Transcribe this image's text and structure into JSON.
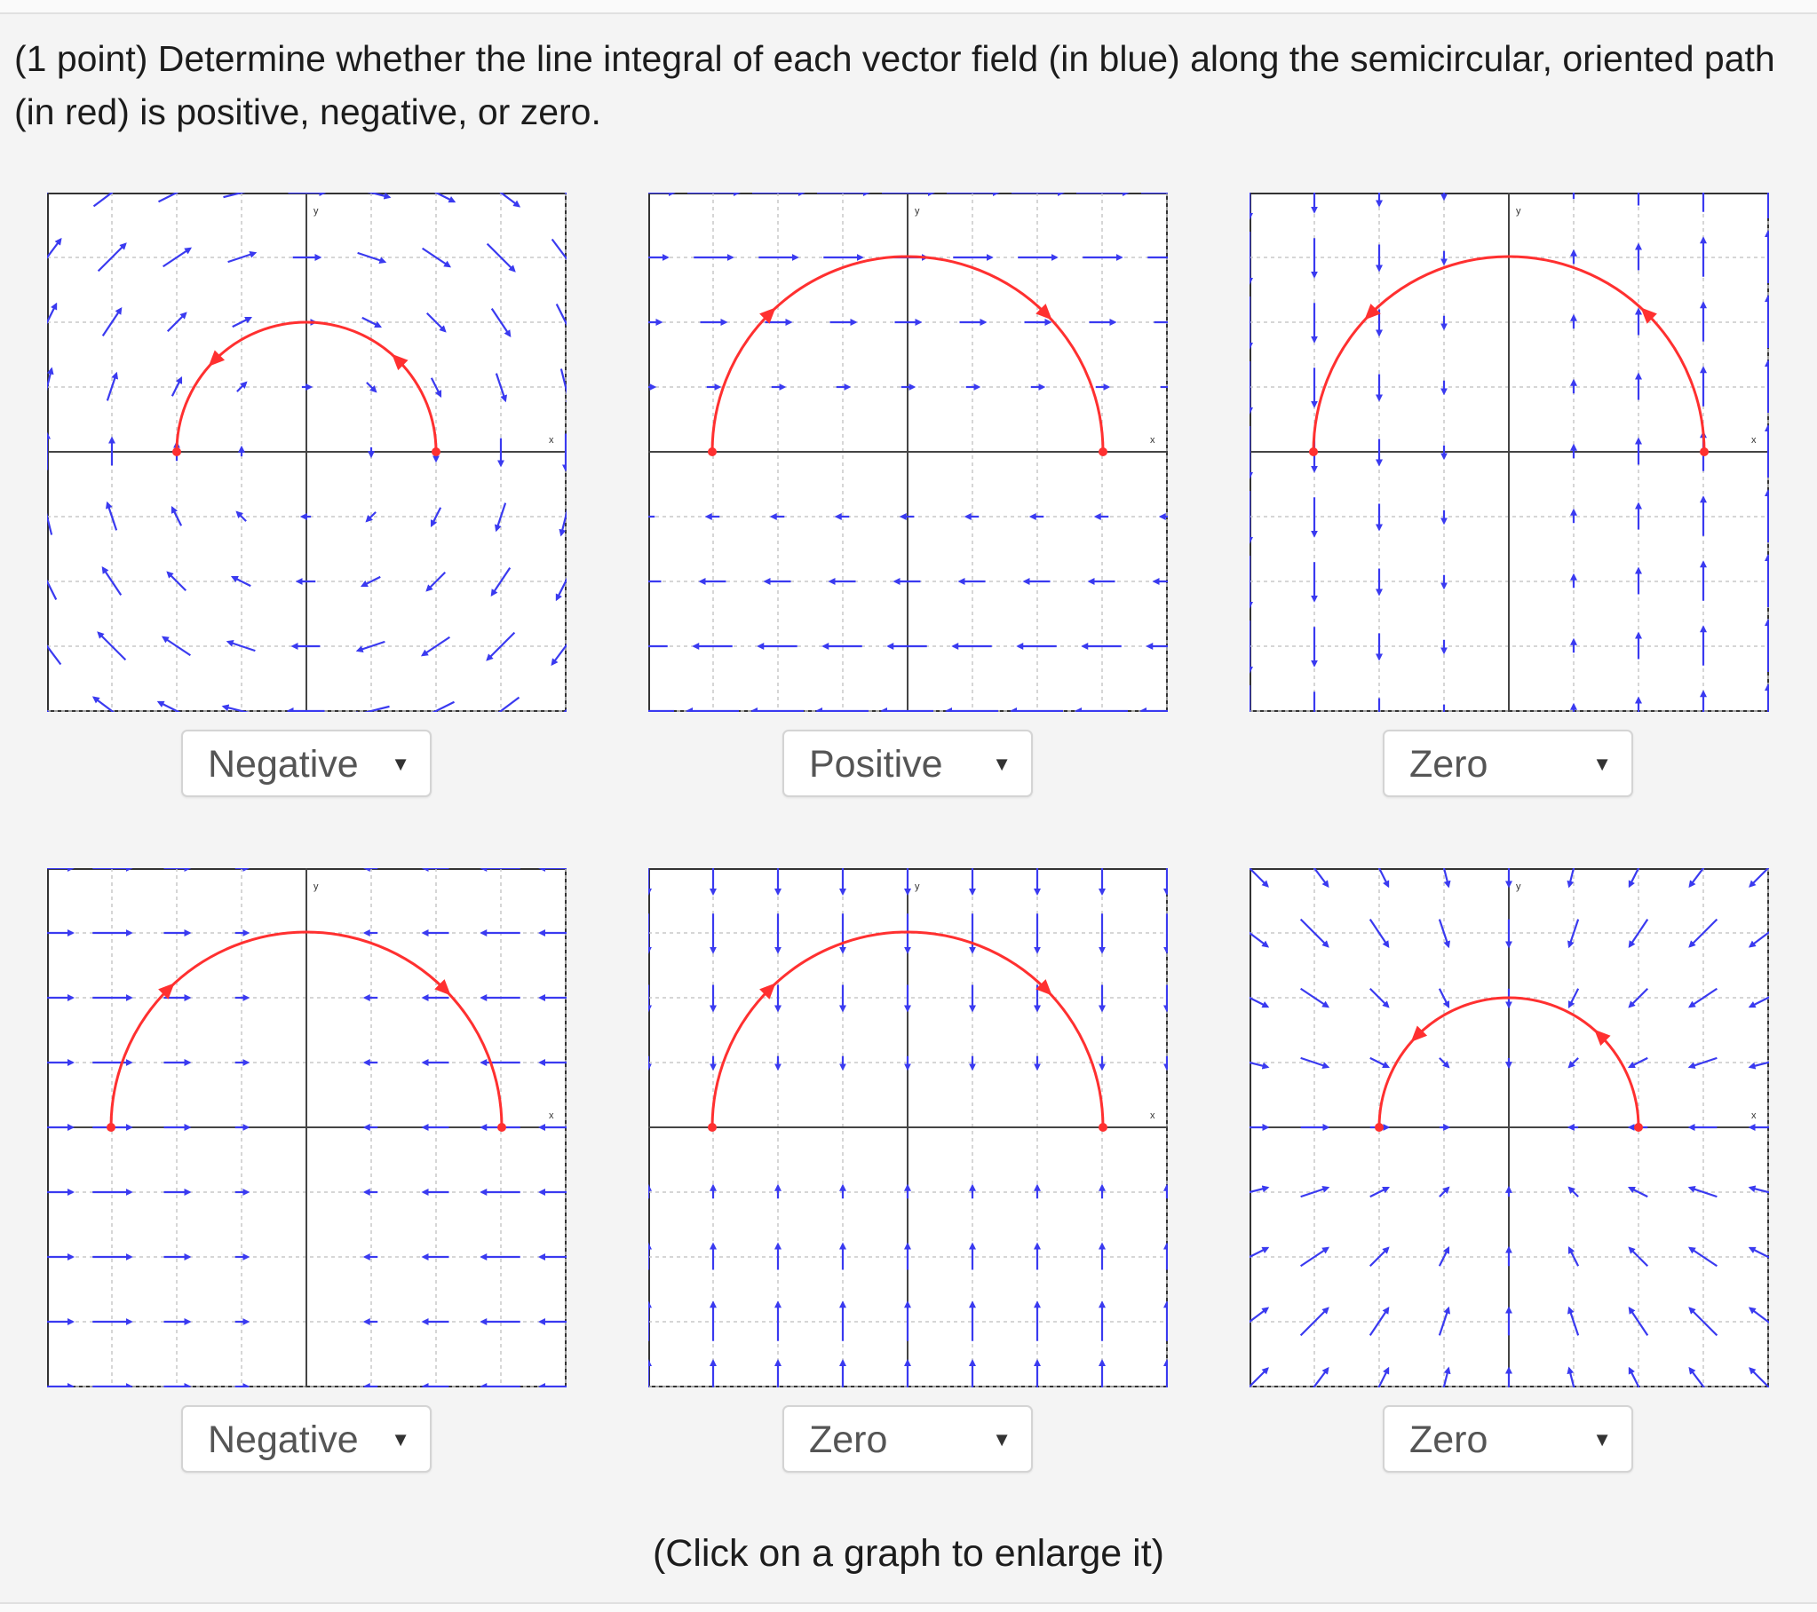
{
  "problem": {
    "text": "(1 point) Determine whether the line integral of each vector field (in blue) along the semicircular, oriented path (in red) is positive, negative, or zero."
  },
  "graphs": [
    {
      "field": "rotation-clockwise",
      "path": "ccw-small",
      "axis_x_label": "x",
      "axis_y_label": "y",
      "answer": "Negative"
    },
    {
      "field": "rightward-upper-leftward-lower",
      "path": "cw-large",
      "axis_x_label": "x",
      "axis_y_label": "y",
      "answer": "Positive"
    },
    {
      "field": "left-down-right-up",
      "path": "ccw-large",
      "axis_x_label": "x",
      "axis_y_label": "y",
      "answer": "Zero"
    },
    {
      "field": "converge-horizontal",
      "path": "cw-large",
      "axis_x_label": "x",
      "axis_y_label": "y",
      "answer": "Negative"
    },
    {
      "field": "vertical-increasing",
      "path": "cw-large",
      "axis_x_label": "x",
      "axis_y_label": "y",
      "answer": "Zero"
    },
    {
      "field": "radial-inward",
      "path": "ccw-small",
      "axis_x_label": "x",
      "axis_y_label": "y",
      "answer": "Zero"
    }
  ],
  "footer": {
    "note": "(Click on a graph to enlarge it)"
  },
  "colors": {
    "vector": "#3a3af0",
    "path": "#ff3030",
    "axis": "#444444",
    "grid": "#c8c8c8"
  },
  "icons": {
    "dropdown": "caret-down-icon"
  }
}
